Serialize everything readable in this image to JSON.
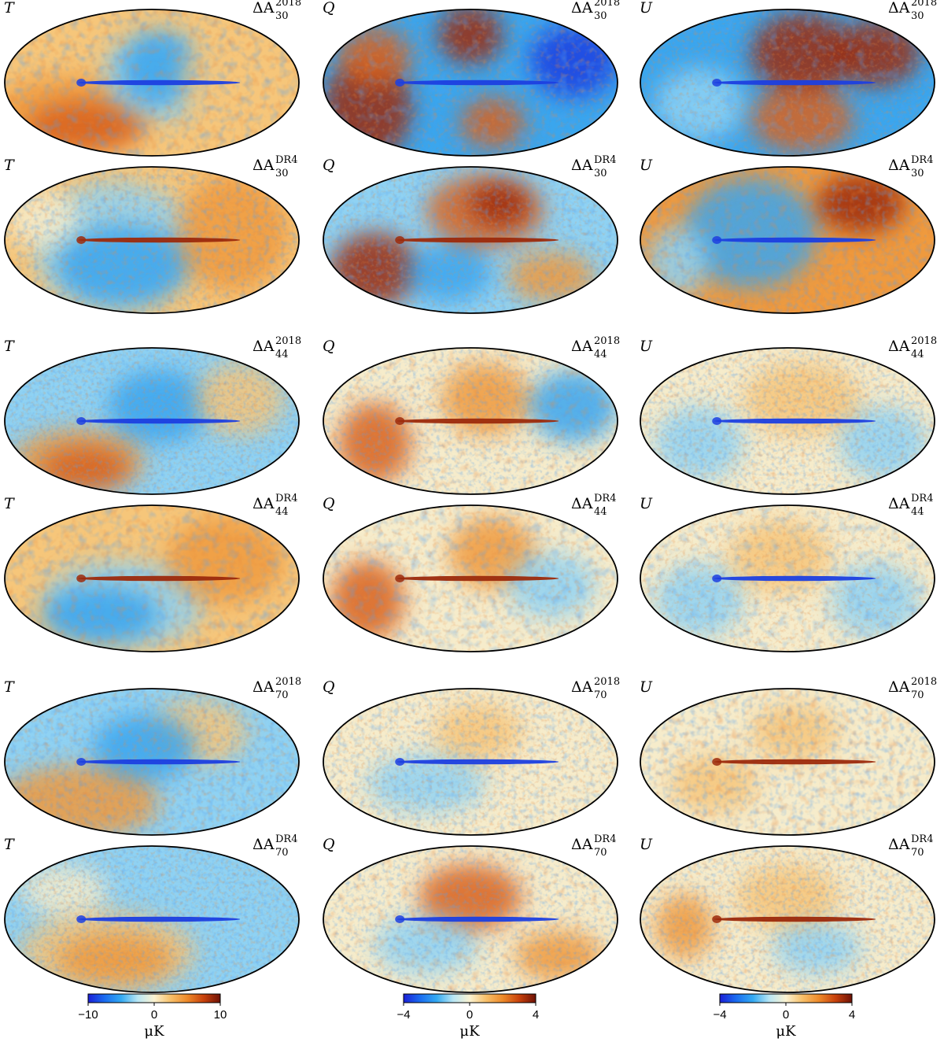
{
  "figure": {
    "rows": [
      {
        "id": "30-2018",
        "delta": "ΔA",
        "sub": "30",
        "sup": "2018"
      },
      {
        "id": "30-DR4",
        "delta": "ΔA",
        "sub": "30",
        "sup": "DR4"
      },
      {
        "id": "44-2018",
        "delta": "ΔA",
        "sub": "44",
        "sup": "2018"
      },
      {
        "id": "44-DR4",
        "delta": "ΔA",
        "sub": "44",
        "sup": "DR4"
      },
      {
        "id": "70-2018",
        "delta": "ΔA",
        "sub": "70",
        "sup": "2018"
      },
      {
        "id": "70-DR4",
        "delta": "ΔA",
        "sub": "70",
        "sup": "DR4"
      }
    ],
    "columns": [
      {
        "stokes": "T"
      },
      {
        "stokes": "Q"
      },
      {
        "stokes": "U"
      }
    ],
    "colorbars": [
      {
        "min_label": "−10",
        "mid_label": "0",
        "max_label": "10",
        "unit": "μK"
      },
      {
        "min_label": "−4",
        "mid_label": "0",
        "max_label": "4",
        "unit": "μK"
      },
      {
        "min_label": "−4",
        "mid_label": "0",
        "max_label": "4",
        "unit": "μK"
      }
    ],
    "colormap": [
      "#1b1fd6",
      "#1a6cf0",
      "#33a9f2",
      "#b8e6f4",
      "#fbf3d2",
      "#f8c06a",
      "#ee8a2a",
      "#c8410c",
      "#6e1206"
    ]
  }
}
